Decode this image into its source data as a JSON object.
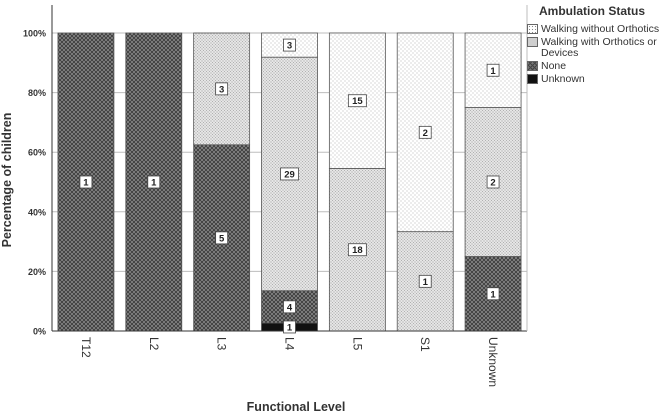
{
  "chart_data": {
    "type": "bar",
    "stacked": true,
    "percent": true,
    "categories": [
      "T12",
      "L2",
      "L3",
      "L4",
      "L5",
      "S1",
      "Unknown"
    ],
    "series": [
      {
        "name": "Unknown",
        "counts": [
          0,
          0,
          0,
          1,
          0,
          0,
          0
        ],
        "color": "#111111"
      },
      {
        "name": "None",
        "counts": [
          1,
          1,
          5,
          4,
          0,
          0,
          1
        ],
        "color": "#777777"
      },
      {
        "name": "Walking with Orthotics or Devices",
        "counts": [
          0,
          0,
          3,
          29,
          18,
          1,
          2
        ],
        "color": "#e4e4e4"
      },
      {
        "name": "Walking without Orthotics",
        "counts": [
          0,
          0,
          0,
          3,
          15,
          2,
          1
        ],
        "color": "#ffffff"
      }
    ],
    "xlabel": "Functional Level",
    "ylabel": "Percentage of children",
    "ylim": [
      0,
      100
    ],
    "yticks": [
      "0%",
      "20%",
      "40%",
      "60%",
      "80%",
      "100%"
    ],
    "grid": true,
    "legend_title": "Ambulation Status",
    "legend_position": "top-right",
    "legend_entries": [
      "Walking without Orthotics",
      "Walking with Orthotics or Devices",
      "None",
      "Unknown"
    ]
  }
}
